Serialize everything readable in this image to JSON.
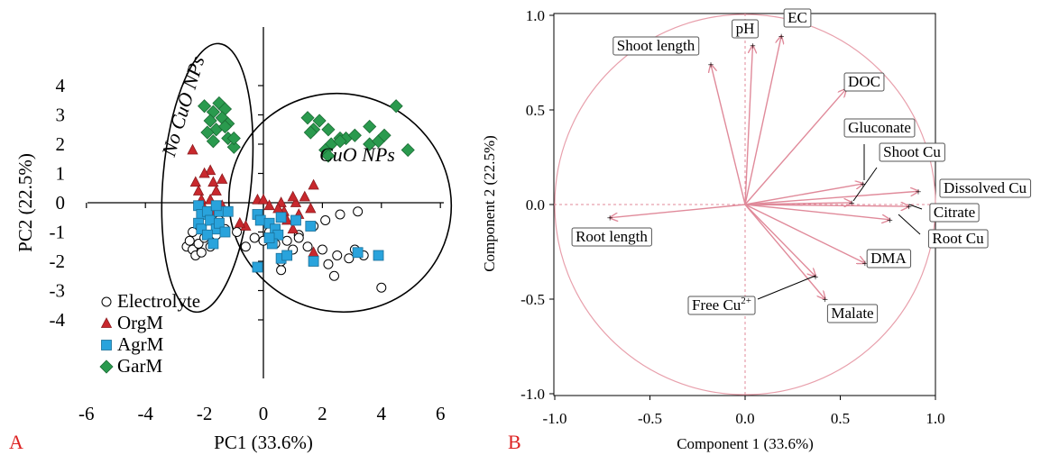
{
  "chart_data": [
    {
      "type": "scatter",
      "panel_letter": "A",
      "xlabel": "PC1 (33.6%)",
      "ylabel": "PC2 (22.5%)",
      "xlim": [
        -6.5,
        6.5
      ],
      "ylim": [
        -4.5,
        4.5
      ],
      "xticks": [
        "-6",
        "-4",
        "-2",
        "0",
        "2",
        "4",
        "6"
      ],
      "yticks": [
        "4",
        "3",
        "2",
        "1",
        "0",
        "-1",
        "-2",
        "-3",
        "-4"
      ],
      "annotations": [
        "No CuO NPs",
        "CuO NPs"
      ],
      "annotation_color": "#dd2222",
      "legend_position": "bottom-left",
      "series": [
        {
          "name": "Electrolyte",
          "marker": "circle",
          "color": "#ffffff",
          "points": [
            [
              -2.6,
              -1.5
            ],
            [
              -2.4,
              -1.6
            ],
            [
              -2.2,
              -1.4
            ],
            [
              -2.5,
              -1.3
            ],
            [
              -2.3,
              -1.8
            ],
            [
              -2.1,
              -1.7
            ],
            [
              -2.0,
              -1.2
            ],
            [
              -1.8,
              -1.5
            ],
            [
              -1.6,
              -1.1
            ],
            [
              -2.4,
              -1.0
            ],
            [
              -1.5,
              -0.6
            ],
            [
              -1.3,
              -0.9
            ],
            [
              -0.9,
              -1.0
            ],
            [
              -0.6,
              -1.5
            ],
            [
              -0.3,
              -1.2
            ],
            [
              0.0,
              -1.3
            ],
            [
              0.2,
              -1.0
            ],
            [
              0.4,
              -1.4
            ],
            [
              0.6,
              -2.3
            ],
            [
              0.6,
              -2.0
            ],
            [
              1.0,
              -1.6
            ],
            [
              1.5,
              -1.5
            ],
            [
              2.0,
              -1.6
            ],
            [
              2.2,
              -2.1
            ],
            [
              2.4,
              -2.5
            ],
            [
              2.5,
              -1.8
            ],
            [
              2.9,
              -1.9
            ],
            [
              3.1,
              -1.6
            ],
            [
              3.4,
              -1.8
            ],
            [
              3.2,
              -0.3
            ],
            [
              2.6,
              -0.4
            ],
            [
              2.1,
              -0.6
            ],
            [
              1.7,
              -0.8
            ],
            [
              1.2,
              -1.1
            ],
            [
              0.8,
              -1.3
            ],
            [
              1.2,
              -1.2
            ],
            [
              4.0,
              -2.9
            ]
          ]
        },
        {
          "name": "OrgM",
          "marker": "triangle",
          "color": "#c8282d",
          "points": [
            [
              -2.4,
              1.8
            ],
            [
              -1.8,
              1.1
            ],
            [
              -2.0,
              1.0
            ],
            [
              -2.3,
              0.7
            ],
            [
              -1.7,
              0.7
            ],
            [
              -2.2,
              0.4
            ],
            [
              -1.6,
              0.4
            ],
            [
              -2.1,
              0.1
            ],
            [
              -1.8,
              0.1
            ],
            [
              -1.4,
              0.8
            ],
            [
              -2.0,
              -0.2
            ],
            [
              -1.7,
              -0.3
            ],
            [
              -1.4,
              -0.1
            ],
            [
              -0.2,
              0.1
            ],
            [
              0.0,
              0.1
            ],
            [
              0.2,
              -0.1
            ],
            [
              0.6,
              0.0
            ],
            [
              0.7,
              -0.3
            ],
            [
              0.8,
              -0.6
            ],
            [
              1.1,
              0.0
            ],
            [
              1.2,
              -0.4
            ],
            [
              1.4,
              0.2
            ],
            [
              1.7,
              0.6
            ],
            [
              1.7,
              -1.7
            ],
            [
              1.6,
              -0.2
            ],
            [
              1.0,
              -0.9
            ],
            [
              -0.6,
              -0.8
            ],
            [
              -0.8,
              -0.7
            ],
            [
              0.5,
              -0.2
            ],
            [
              1.0,
              0.2
            ]
          ]
        },
        {
          "name": "AgrM",
          "marker": "square",
          "color": "#29a3dc",
          "points": [
            [
              -2.2,
              -0.1
            ],
            [
              -2.1,
              -0.4
            ],
            [
              -2.2,
              -0.7
            ],
            [
              -2.1,
              -0.9
            ],
            [
              -1.9,
              -0.3
            ],
            [
              -1.8,
              -0.6
            ],
            [
              -1.6,
              -0.9
            ],
            [
              -1.5,
              -0.7
            ],
            [
              -1.5,
              -0.3
            ],
            [
              -1.6,
              -0.1
            ],
            [
              -1.9,
              -1.1
            ],
            [
              -1.7,
              -1.4
            ],
            [
              -1.3,
              -1.0
            ],
            [
              -1.2,
              -0.3
            ],
            [
              -0.2,
              -0.4
            ],
            [
              -0.1,
              -0.6
            ],
            [
              0.2,
              -0.7
            ],
            [
              0.4,
              -0.9
            ],
            [
              0.6,
              -0.5
            ],
            [
              0.5,
              -1.1
            ],
            [
              0.6,
              -1.9
            ],
            [
              0.8,
              -1.8
            ],
            [
              0.3,
              -1.4
            ],
            [
              -0.2,
              -2.2
            ],
            [
              1.6,
              -0.8
            ],
            [
              1.7,
              -2.0
            ],
            [
              3.2,
              -1.7
            ],
            [
              3.9,
              -1.8
            ],
            [
              1.1,
              -0.6
            ],
            [
              0.2,
              -1.2
            ]
          ]
        },
        {
          "name": "GarM",
          "marker": "diamond",
          "color": "#2a9a4e",
          "points": [
            [
              -2.0,
              3.3
            ],
            [
              -1.7,
              3.1
            ],
            [
              -1.5,
              3.4
            ],
            [
              -1.3,
              3.2
            ],
            [
              -1.8,
              2.8
            ],
            [
              -1.4,
              2.9
            ],
            [
              -1.2,
              2.7
            ],
            [
              -1.6,
              2.5
            ],
            [
              -1.9,
              2.4
            ],
            [
              -1.7,
              2.1
            ],
            [
              -1.2,
              2.2
            ],
            [
              -1.0,
              1.9
            ],
            [
              -1.0,
              2.2
            ],
            [
              -1.3,
              2.6
            ],
            [
              1.5,
              2.9
            ],
            [
              1.9,
              2.8
            ],
            [
              1.7,
              2.5
            ],
            [
              1.6,
              2.4
            ],
            [
              2.2,
              2.5
            ],
            [
              2.6,
              2.2
            ],
            [
              2.8,
              2.2
            ],
            [
              3.1,
              2.3
            ],
            [
              2.3,
              2.0
            ],
            [
              2.1,
              1.8
            ],
            [
              2.2,
              1.6
            ],
            [
              3.6,
              2.0
            ],
            [
              3.9,
              2.1
            ],
            [
              4.1,
              2.3
            ],
            [
              4.5,
              3.3
            ],
            [
              4.9,
              1.8
            ],
            [
              3.6,
              2.6
            ],
            [
              2.6,
              2.1
            ]
          ]
        }
      ],
      "ellipses": [
        {
          "label": "No CuO NPs",
          "center": [
            -1.9,
            0.85
          ],
          "semi_axes": [
            1.5,
            4.6
          ],
          "rotation_deg": 5
        },
        {
          "label": "CuO NPs",
          "center": [
            2.6,
            0.0
          ],
          "semi_axes": [
            3.8,
            3.7
          ],
          "rotation_deg": 30
        }
      ]
    },
    {
      "type": "biplot",
      "panel_letter": "B",
      "xlabel": "Component 1 (33.6%)",
      "ylabel": "Component 2 (22.5%)",
      "xlim": [
        -1.0,
        1.0
      ],
      "ylim": [
        -1.0,
        1.0
      ],
      "xticks": [
        "-1.0",
        "-0.5",
        "0.0",
        "0.5",
        "1.0"
      ],
      "yticks": [
        "1.0",
        "0.5",
        "0.0",
        "-0.5",
        "-1.0"
      ],
      "line_color": "#e08a9a",
      "unit_circle": true,
      "loadings": [
        {
          "name": "Shoot length",
          "x": -0.18,
          "y": 0.74
        },
        {
          "name": "pH",
          "x": 0.04,
          "y": 0.84
        },
        {
          "name": "EC",
          "x": 0.19,
          "y": 0.89
        },
        {
          "name": "DOC",
          "x": 0.53,
          "y": 0.61
        },
        {
          "name": "Gluconate",
          "x": 0.62,
          "y": 0.11
        },
        {
          "name": "Shoot Cu",
          "x": 0.56,
          "y": 0.01
        },
        {
          "name": "Dissolved Cu",
          "x": 0.91,
          "y": 0.07
        },
        {
          "name": "Citrate",
          "x": 0.86,
          "y": -0.01
        },
        {
          "name": "Root Cu",
          "x": 0.76,
          "y": -0.08
        },
        {
          "name": "DMA",
          "x": 0.63,
          "y": -0.31
        },
        {
          "name": "Malate",
          "x": 0.42,
          "y": -0.5
        },
        {
          "name": "Free Cu2+",
          "x": 0.37,
          "y": -0.38
        },
        {
          "name": "Root length",
          "x": -0.71,
          "y": -0.07
        }
      ]
    }
  ]
}
